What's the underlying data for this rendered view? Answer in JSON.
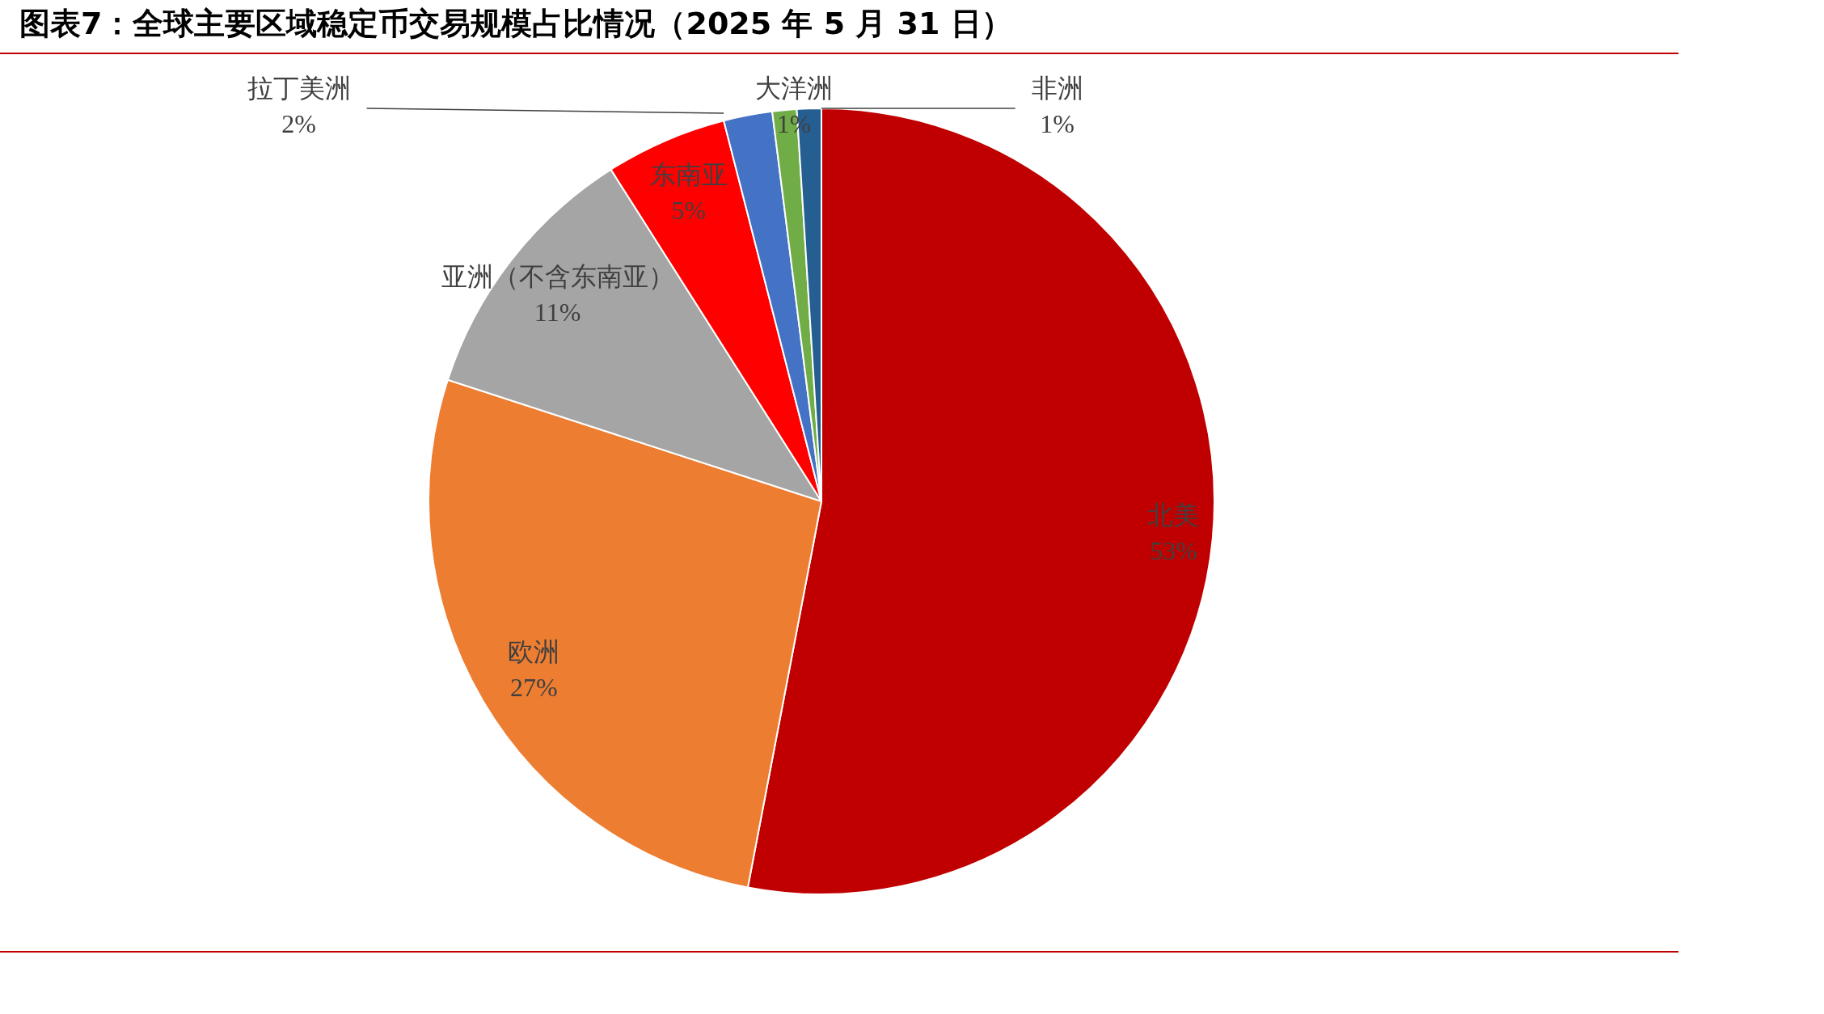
{
  "chart_data": {
    "type": "pie",
    "title": "图表7：全球主要区域稳定币交易规模占比情况（2025 年 5 月 31 日）",
    "categories": [
      "北美",
      "欧洲",
      "亚洲（不含东南亚）",
      "东南亚",
      "拉丁美洲",
      "大洋洲",
      "非洲"
    ],
    "values": [
      53,
      27,
      11,
      5,
      2,
      1,
      1
    ],
    "colors": [
      "#c00000",
      "#ed7d31",
      "#a5a5a5",
      "#ff0000",
      "#4472c4",
      "#70ad47",
      "#255e91"
    ],
    "value_labels": [
      "53%",
      "27%",
      "11%",
      "5%",
      "2%",
      "1%",
      "1%"
    ]
  }
}
